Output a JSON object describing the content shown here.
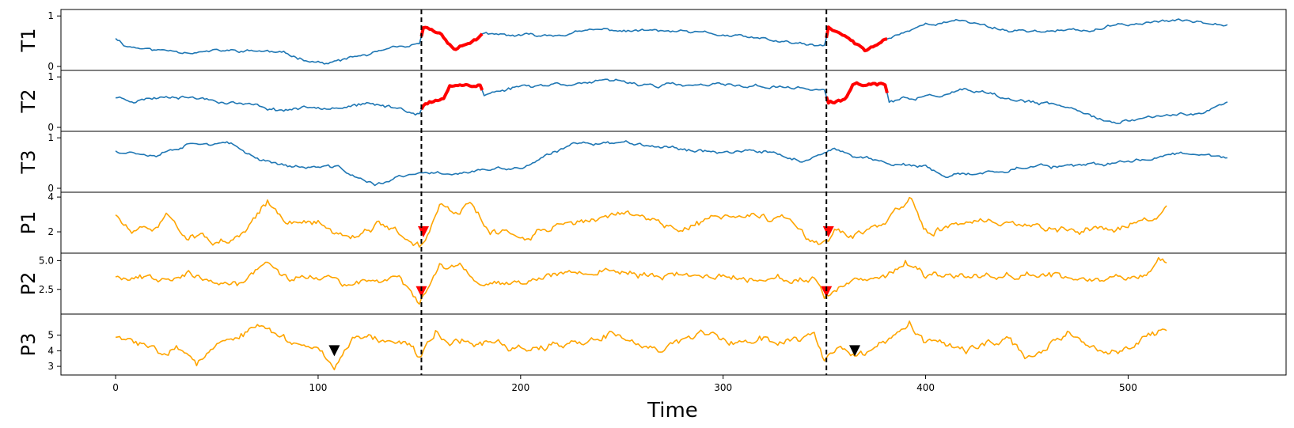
{
  "chart_data": {
    "type": "line",
    "xlabel": "Time",
    "xlim": [
      -27,
      578
    ],
    "xticks": [
      0,
      100,
      200,
      300,
      400,
      500
    ],
    "change_points": [
      151,
      351
    ],
    "panels": [
      {
        "ylabel": "T1",
        "ylim": [
          0,
          1.05
        ],
        "yticks": [
          0,
          1
        ],
        "color": "#1f77b4",
        "length": 550,
        "seed": 11,
        "amp": 0.022,
        "smooth": 0.15,
        "anchors": [
          [
            0,
            0.57
          ],
          [
            5,
            0.42
          ],
          [
            20,
            0.32
          ],
          [
            50,
            0.3
          ],
          [
            75,
            0.3
          ],
          [
            90,
            0.18
          ],
          [
            105,
            0.06
          ],
          [
            120,
            0.2
          ],
          [
            140,
            0.35
          ],
          [
            150,
            0.4
          ],
          [
            152,
            0.75
          ],
          [
            160,
            0.65
          ],
          [
            168,
            0.35
          ],
          [
            182,
            0.62
          ],
          [
            210,
            0.6
          ],
          [
            240,
            0.72
          ],
          [
            270,
            0.7
          ],
          [
            300,
            0.62
          ],
          [
            330,
            0.48
          ],
          [
            350,
            0.38
          ],
          [
            352,
            0.75
          ],
          [
            362,
            0.55
          ],
          [
            370,
            0.3
          ],
          [
            382,
            0.58
          ],
          [
            400,
            0.85
          ],
          [
            420,
            0.9
          ],
          [
            440,
            0.72
          ],
          [
            480,
            0.7
          ],
          [
            500,
            0.84
          ],
          [
            520,
            0.9
          ],
          [
            550,
            0.88
          ]
        ],
        "highlights": [
          [
            151,
            181
          ],
          [
            351,
            381
          ]
        ],
        "highlight_color": "#ff0000"
      },
      {
        "ylabel": "T2",
        "ylim": [
          0,
          1.05
        ],
        "yticks": [
          0,
          1
        ],
        "color": "#1f77b4",
        "length": 550,
        "seed": 23,
        "amp": 0.025,
        "smooth": 0.15,
        "anchors": [
          [
            0,
            0.6
          ],
          [
            10,
            0.55
          ],
          [
            30,
            0.65
          ],
          [
            60,
            0.5
          ],
          [
            80,
            0.35
          ],
          [
            100,
            0.42
          ],
          [
            120,
            0.45
          ],
          [
            140,
            0.38
          ],
          [
            150,
            0.3
          ],
          [
            152,
            0.45
          ],
          [
            162,
            0.55
          ],
          [
            165,
            0.85
          ],
          [
            180,
            0.85
          ],
          [
            182,
            0.65
          ],
          [
            200,
            0.82
          ],
          [
            230,
            0.9
          ],
          [
            250,
            0.88
          ],
          [
            280,
            0.82
          ],
          [
            320,
            0.82
          ],
          [
            350,
            0.75
          ],
          [
            352,
            0.45
          ],
          [
            360,
            0.55
          ],
          [
            365,
            0.85
          ],
          [
            380,
            0.85
          ],
          [
            382,
            0.5
          ],
          [
            400,
            0.6
          ],
          [
            420,
            0.72
          ],
          [
            440,
            0.55
          ],
          [
            460,
            0.45
          ],
          [
            480,
            0.3
          ],
          [
            495,
            0.05
          ],
          [
            510,
            0.2
          ],
          [
            535,
            0.3
          ],
          [
            550,
            0.48
          ]
        ],
        "highlights": [
          [
            151,
            181
          ],
          [
            351,
            381
          ]
        ],
        "highlight_color": "#ff0000"
      },
      {
        "ylabel": "T3",
        "ylim": [
          0,
          1.05
        ],
        "yticks": [
          0,
          1
        ],
        "color": "#1f77b4",
        "length": 550,
        "seed": 37,
        "amp": 0.025,
        "smooth": 0.15,
        "anchors": [
          [
            0,
            0.75
          ],
          [
            20,
            0.7
          ],
          [
            40,
            0.95
          ],
          [
            55,
            0.88
          ],
          [
            70,
            0.6
          ],
          [
            90,
            0.42
          ],
          [
            110,
            0.4
          ],
          [
            128,
            0.05
          ],
          [
            140,
            0.22
          ],
          [
            155,
            0.28
          ],
          [
            180,
            0.35
          ],
          [
            200,
            0.4
          ],
          [
            215,
            0.65
          ],
          [
            230,
            0.92
          ],
          [
            260,
            0.9
          ],
          [
            290,
            0.75
          ],
          [
            320,
            0.72
          ],
          [
            340,
            0.55
          ],
          [
            355,
            0.72
          ],
          [
            380,
            0.52
          ],
          [
            400,
            0.4
          ],
          [
            410,
            0.2
          ],
          [
            425,
            0.28
          ],
          [
            450,
            0.45
          ],
          [
            480,
            0.42
          ],
          [
            500,
            0.52
          ],
          [
            520,
            0.68
          ],
          [
            540,
            0.72
          ],
          [
            550,
            0.6
          ]
        ],
        "highlights": []
      },
      {
        "ylabel": "P1",
        "ylim": [
          1.0,
          4.05
        ],
        "yticks": [
          2,
          4
        ],
        "color": "#ffa500",
        "length": 520,
        "seed": 51,
        "amp": 0.15,
        "smooth": 0.22,
        "anchors": [
          [
            0,
            3.0
          ],
          [
            8,
            1.9
          ],
          [
            20,
            2.2
          ],
          [
            25,
            3.0
          ],
          [
            35,
            1.8
          ],
          [
            45,
            1.6
          ],
          [
            55,
            1.3
          ],
          [
            63,
            1.6
          ],
          [
            75,
            3.8
          ],
          [
            85,
            2.4
          ],
          [
            100,
            2.6
          ],
          [
            110,
            1.8
          ],
          [
            120,
            2.0
          ],
          [
            130,
            2.5
          ],
          [
            150,
            1.2
          ],
          [
            155,
            2.0
          ],
          [
            160,
            3.5
          ],
          [
            170,
            3.0
          ],
          [
            175,
            3.6
          ],
          [
            185,
            2.0
          ],
          [
            200,
            1.7
          ],
          [
            220,
            2.5
          ],
          [
            245,
            2.9
          ],
          [
            265,
            2.8
          ],
          [
            280,
            2.1
          ],
          [
            295,
            2.9
          ],
          [
            310,
            2.8
          ],
          [
            330,
            2.7
          ],
          [
            345,
            1.3
          ],
          [
            350,
            1.2
          ],
          [
            355,
            2.0
          ],
          [
            362,
            1.7
          ],
          [
            380,
            2.4
          ],
          [
            392,
            3.9
          ],
          [
            400,
            2.0
          ],
          [
            420,
            2.6
          ],
          [
            440,
            2.4
          ],
          [
            460,
            2.3
          ],
          [
            480,
            2.2
          ],
          [
            500,
            2.3
          ],
          [
            515,
            3.0
          ],
          [
            520,
            3.5
          ]
        ],
        "highlights": [],
        "markers": [
          {
            "x": 152,
            "y": 2.0,
            "color": "#ff0000"
          },
          {
            "x": 352,
            "y": 2.0,
            "color": "#ff0000"
          }
        ]
      },
      {
        "ylabel": "P2",
        "ylim": [
          0.7,
          5.3
        ],
        "yticks": [
          2.5,
          5.0
        ],
        "tick_format": "1dp",
        "color": "#ffa500",
        "length": 520,
        "seed": 67,
        "amp": 0.2,
        "smooth": 0.22,
        "anchors": [
          [
            0,
            3.7
          ],
          [
            20,
            3.5
          ],
          [
            35,
            4.0
          ],
          [
            45,
            3.2
          ],
          [
            50,
            3.0
          ],
          [
            60,
            2.8
          ],
          [
            75,
            5.0
          ],
          [
            85,
            3.5
          ],
          [
            105,
            3.6
          ],
          [
            115,
            2.6
          ],
          [
            125,
            3.2
          ],
          [
            140,
            3.4
          ],
          [
            150,
            1.5
          ],
          [
            160,
            4.2
          ],
          [
            170,
            4.6
          ],
          [
            180,
            3.0
          ],
          [
            200,
            3.3
          ],
          [
            230,
            4.2
          ],
          [
            260,
            3.8
          ],
          [
            290,
            3.7
          ],
          [
            320,
            3.5
          ],
          [
            345,
            3.3
          ],
          [
            350,
            1.5
          ],
          [
            360,
            2.8
          ],
          [
            380,
            3.5
          ],
          [
            390,
            5.0
          ],
          [
            400,
            3.4
          ],
          [
            420,
            3.6
          ],
          [
            450,
            4.0
          ],
          [
            470,
            3.5
          ],
          [
            490,
            3.3
          ],
          [
            510,
            4.0
          ],
          [
            515,
            5.0
          ],
          [
            520,
            4.8
          ]
        ],
        "highlights": [],
        "markers": [
          {
            "x": 151,
            "y": 2.3,
            "color": "#ff0000"
          },
          {
            "x": 351,
            "y": 2.3,
            "color": "#ff0000"
          }
        ]
      },
      {
        "ylabel": "P3",
        "ylim": [
          2.7,
          6.1
        ],
        "yticks": [
          3,
          4,
          5
        ],
        "color": "#ffa500",
        "length": 520,
        "seed": 83,
        "amp": 0.18,
        "smooth": 0.22,
        "anchors": [
          [
            0,
            4.9
          ],
          [
            10,
            4.5
          ],
          [
            20,
            4.1
          ],
          [
            30,
            4.4
          ],
          [
            40,
            3.2
          ],
          [
            50,
            4.2
          ],
          [
            75,
            5.6
          ],
          [
            80,
            4.8
          ],
          [
            100,
            4.2
          ],
          [
            108,
            3.1
          ],
          [
            115,
            4.5
          ],
          [
            120,
            5.2
          ],
          [
            135,
            4.6
          ],
          [
            145,
            4.5
          ],
          [
            150,
            3.5
          ],
          [
            158,
            5.3
          ],
          [
            165,
            4.6
          ],
          [
            180,
            4.5
          ],
          [
            200,
            4.2
          ],
          [
            230,
            4.3
          ],
          [
            245,
            5.1
          ],
          [
            265,
            4.2
          ],
          [
            290,
            4.8
          ],
          [
            310,
            4.6
          ],
          [
            330,
            4.8
          ],
          [
            345,
            5.0
          ],
          [
            350,
            3.5
          ],
          [
            358,
            4.5
          ],
          [
            365,
            3.6
          ],
          [
            380,
            4.2
          ],
          [
            392,
            5.5
          ],
          [
            400,
            4.5
          ],
          [
            420,
            4.0
          ],
          [
            440,
            4.8
          ],
          [
            450,
            3.4
          ],
          [
            470,
            5.2
          ],
          [
            485,
            4.0
          ],
          [
            500,
            4.2
          ],
          [
            510,
            5.0
          ],
          [
            520,
            5.5
          ]
        ],
        "highlights": [],
        "markers": [
          {
            "x": 108,
            "y": 4.0,
            "color": "#000000"
          },
          {
            "x": 365,
            "y": 4.0,
            "color": "#000000"
          }
        ]
      }
    ]
  }
}
